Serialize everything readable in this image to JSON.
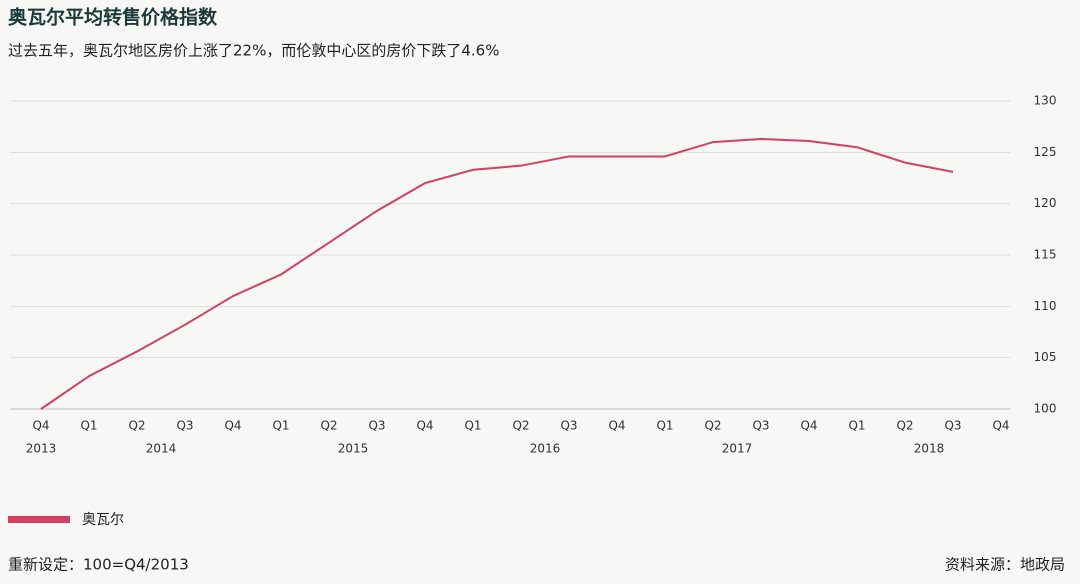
{
  "chart_data": {
    "type": "line",
    "title": "奥瓦尔平均转售价格指数",
    "subtitle": "过去五年，奥瓦尔地区房价上涨了22%，而伦敦中心区的房价下跌了4.6%",
    "categories": [
      "Q4",
      "Q1",
      "Q2",
      "Q3",
      "Q4",
      "Q1",
      "Q2",
      "Q3",
      "Q4",
      "Q1",
      "Q2",
      "Q3",
      "Q4",
      "Q1",
      "Q2",
      "Q3",
      "Q4",
      "Q1",
      "Q2",
      "Q3",
      "Q4"
    ],
    "years": [
      "2013",
      "2014",
      "2015",
      "2016",
      "2017",
      "2018"
    ],
    "series": [
      {
        "name": "奥瓦尔",
        "color": "#d4405e",
        "values": [
          100,
          103.2,
          105.6,
          108.2,
          111.0,
          113.1,
          116.2,
          119.3,
          122.0,
          123.3,
          123.7,
          124.6,
          124.6,
          124.6,
          126.0,
          126.3,
          126.1,
          125.5,
          124.0,
          123.1,
          null
        ]
      }
    ],
    "ylim": [
      100,
      130
    ],
    "yticks": [
      100,
      105,
      110,
      115,
      120,
      125,
      130
    ],
    "grid": true,
    "note": "重新设定：100=Q4/2013",
    "source": "资料来源：地政局"
  }
}
